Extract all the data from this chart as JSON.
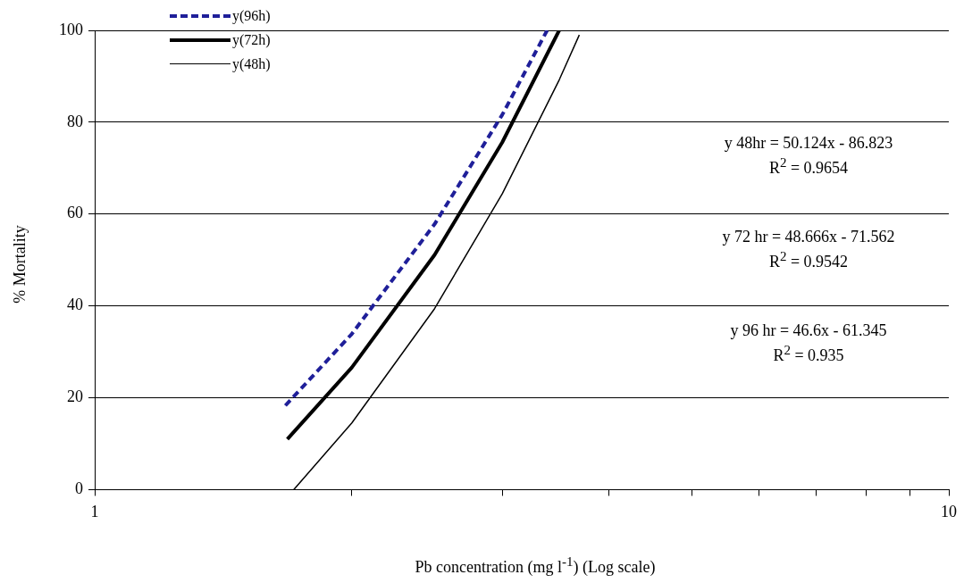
{
  "chart_data": {
    "type": "line",
    "xlabel": "Pb concentration (mg l$^{-1}$) (Log scale)",
    "ylabel": "% Mortality",
    "log": "x",
    "xlim": [
      1,
      10
    ],
    "xticks": [
      1,
      {
        "value": 2,
        "label": null
      },
      {
        "value": 3,
        "label": null
      },
      {
        "value": 4,
        "label": null
      },
      {
        "value": 5,
        "label": null
      },
      {
        "value": 6,
        "label": null
      },
      {
        "value": 7,
        "label": null
      },
      {
        "value": 8,
        "label": null
      },
      {
        "value": 9,
        "label": null
      },
      10
    ],
    "ylim": [
      0,
      100
    ],
    "yticks": [
      0,
      20,
      40,
      60,
      80,
      100
    ],
    "grid": "y",
    "legend": "top left",
    "marker": "none",
    "series": [
      {
        "name": "y(96h)",
        "color": "#1f1f99",
        "line_style": "dashed",
        "x": [
          1.672,
          2.0,
          2.5,
          3.0,
          3.386
        ],
        "values": [
          18.3,
          33.9,
          57.8,
          81.6,
          100
        ]
      },
      {
        "name": "y(72h)",
        "color": "#000000",
        "line_style": "solid",
        "x": [
          1.681,
          2.0,
          2.5,
          3.0,
          3.498
        ],
        "values": [
          11,
          26.6,
          51.1,
          75.6,
          100
        ]
      },
      {
        "name": "y(48h)",
        "color": "#000000",
        "line_style": "solid",
        "x": [
          1.71,
          2.0,
          2.5,
          3.0,
          3.5,
          3.693
        ],
        "values": [
          0,
          14.5,
          39.4,
          64.4,
          89.3,
          99
        ]
      }
    ],
    "annotations": [
      "y 48hr = 50.124x - 86.823",
      "R$^{2}$ = 0.9654",
      "y 72 hr = 48.666x - 71.562",
      "R$^{2}$ = 0.9542",
      "y 96 hr = 46.6x - 61.345",
      "R$^{2}$ = 0.935"
    ]
  }
}
